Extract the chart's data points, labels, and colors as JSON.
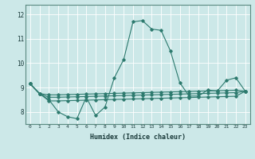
{
  "xlabel": "Humidex (Indice chaleur)",
  "background_color": "#cce8e8",
  "grid_color": "#ffffff",
  "line_color": "#2d7a6e",
  "x_ticks": [
    0,
    1,
    2,
    3,
    4,
    5,
    6,
    7,
    8,
    9,
    10,
    11,
    12,
    13,
    14,
    15,
    16,
    17,
    18,
    19,
    20,
    21,
    22,
    23
  ],
  "ylim": [
    7.5,
    12.4
  ],
  "yticks": [
    8,
    9,
    10,
    11,
    12
  ],
  "series": [
    [
      9.15,
      8.75,
      8.5,
      8.0,
      7.8,
      7.72,
      8.6,
      7.85,
      8.2,
      9.4,
      10.15,
      11.7,
      11.75,
      11.4,
      11.35,
      10.5,
      9.2,
      8.65,
      8.65,
      8.9,
      8.85,
      9.3,
      9.4,
      8.85
    ],
    [
      9.15,
      8.75,
      8.7,
      8.7,
      8.71,
      8.72,
      8.73,
      8.74,
      8.75,
      8.76,
      8.77,
      8.78,
      8.79,
      8.8,
      8.81,
      8.82,
      8.83,
      8.84,
      8.85,
      8.86,
      8.87,
      8.88,
      8.89,
      8.85
    ],
    [
      9.15,
      8.75,
      8.6,
      8.6,
      8.61,
      8.62,
      8.63,
      8.64,
      8.65,
      8.66,
      8.67,
      8.68,
      8.69,
      8.7,
      8.71,
      8.72,
      8.73,
      8.74,
      8.75,
      8.76,
      8.77,
      8.78,
      8.79,
      8.85
    ],
    [
      9.15,
      8.75,
      8.45,
      8.45,
      8.46,
      8.47,
      8.48,
      8.49,
      8.5,
      8.51,
      8.52,
      8.53,
      8.54,
      8.55,
      8.56,
      8.57,
      8.58,
      8.59,
      8.6,
      8.61,
      8.62,
      8.63,
      8.64,
      8.85
    ]
  ]
}
